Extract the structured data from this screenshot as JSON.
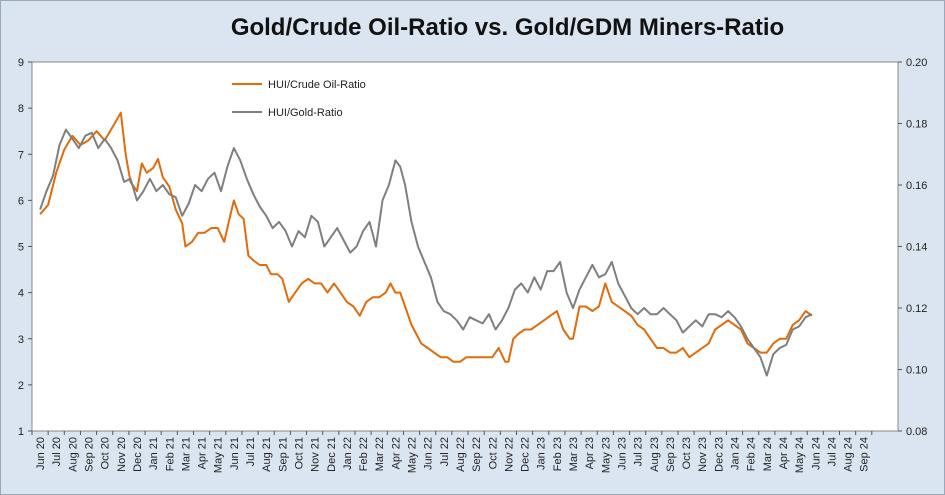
{
  "chart_data": {
    "type": "line",
    "title": "Gold/Crude Oil-Ratio vs. Gold/GDM Miners-Ratio",
    "x_labels": [
      "Jun 20",
      "Jul 20",
      "Aug 20",
      "Sep 20",
      "Oct 20",
      "Nov 20",
      "Dec 20",
      "Jan 21",
      "Feb 21",
      "Mar 21",
      "Apr 21",
      "May 21",
      "Jun 21",
      "Jul 21",
      "Aug 21",
      "Sep 21",
      "Oct 21",
      "Nov 21",
      "Dec 21",
      "Jan 22",
      "Feb 22",
      "Mar 22",
      "Apr 22",
      "May 22",
      "Jun 22",
      "Jul 22",
      "Aug 22",
      "Sep 22",
      "Oct 22",
      "Nov 22",
      "Dec 22",
      "Jan 23",
      "Feb 23",
      "Mar 23",
      "Apr 23",
      "May 23",
      "Jun 23",
      "Jul 23",
      "Aug 23",
      "Sep 23",
      "Oct 23",
      "Nov 23",
      "Dec 23",
      "Jan 24",
      "Feb 24",
      "Mar 24",
      "Apr 24",
      "May 24",
      "Jun 24",
      "Jul 24",
      "Aug 24",
      "Sep 24"
    ],
    "y_left": {
      "min": 1,
      "max": 9,
      "ticks": [
        "1",
        "2",
        "3",
        "4",
        "5",
        "6",
        "7",
        "8",
        "9"
      ]
    },
    "y_right": {
      "min": 0.08,
      "max": 0.2,
      "ticks": [
        "0.08",
        "0.10",
        "0.12",
        "0.14",
        "0.16",
        "0.18",
        "0.20"
      ]
    },
    "series": [
      {
        "name": "HUI/Crude Oil-Ratio",
        "axis": "left",
        "color": "#e26b0a",
        "points": [
          [
            0,
            5.7
          ],
          [
            0.5,
            5.9
          ],
          [
            1,
            6.6
          ],
          [
            1.5,
            7.1
          ],
          [
            2,
            7.4
          ],
          [
            2.5,
            7.2
          ],
          [
            3,
            7.3
          ],
          [
            3.5,
            7.5
          ],
          [
            4,
            7.3
          ],
          [
            4.5,
            7.6
          ],
          [
            5,
            7.9
          ],
          [
            5.3,
            7.0
          ],
          [
            5.6,
            6.4
          ],
          [
            6,
            6.2
          ],
          [
            6.3,
            6.8
          ],
          [
            6.6,
            6.6
          ],
          [
            7,
            6.7
          ],
          [
            7.3,
            6.9
          ],
          [
            7.6,
            6.5
          ],
          [
            8,
            6.3
          ],
          [
            8.4,
            5.8
          ],
          [
            8.8,
            5.5
          ],
          [
            9,
            5.0
          ],
          [
            9.4,
            5.1
          ],
          [
            9.8,
            5.3
          ],
          [
            10.2,
            5.3
          ],
          [
            10.6,
            5.4
          ],
          [
            11,
            5.4
          ],
          [
            11.4,
            5.1
          ],
          [
            11.8,
            5.7
          ],
          [
            12,
            6.0
          ],
          [
            12.3,
            5.7
          ],
          [
            12.6,
            5.6
          ],
          [
            12.9,
            4.8
          ],
          [
            13.2,
            4.7
          ],
          [
            13.6,
            4.6
          ],
          [
            14,
            4.6
          ],
          [
            14.3,
            4.4
          ],
          [
            14.7,
            4.4
          ],
          [
            15,
            4.3
          ],
          [
            15.4,
            3.8
          ],
          [
            15.8,
            4.0
          ],
          [
            16.2,
            4.2
          ],
          [
            16.6,
            4.3
          ],
          [
            17,
            4.2
          ],
          [
            17.4,
            4.2
          ],
          [
            17.8,
            4.0
          ],
          [
            18.2,
            4.2
          ],
          [
            18.6,
            4.0
          ],
          [
            19,
            3.8
          ],
          [
            19.4,
            3.7
          ],
          [
            19.8,
            3.5
          ],
          [
            20.2,
            3.8
          ],
          [
            20.6,
            3.9
          ],
          [
            21,
            3.9
          ],
          [
            21.4,
            4.0
          ],
          [
            21.7,
            4.2
          ],
          [
            22,
            4.0
          ],
          [
            22.3,
            4.0
          ],
          [
            22.6,
            3.7
          ],
          [
            23,
            3.3
          ],
          [
            23.3,
            3.1
          ],
          [
            23.6,
            2.9
          ],
          [
            24,
            2.8
          ],
          [
            24.4,
            2.7
          ],
          [
            24.8,
            2.6
          ],
          [
            25.2,
            2.6
          ],
          [
            25.6,
            2.5
          ],
          [
            26,
            2.5
          ],
          [
            26.4,
            2.6
          ],
          [
            26.8,
            2.6
          ],
          [
            27.2,
            2.6
          ],
          [
            27.6,
            2.6
          ],
          [
            28,
            2.6
          ],
          [
            28.4,
            2.8
          ],
          [
            28.8,
            2.5
          ],
          [
            29,
            2.5
          ],
          [
            29.3,
            3.0
          ],
          [
            29.6,
            3.1
          ],
          [
            30,
            3.2
          ],
          [
            30.4,
            3.2
          ],
          [
            30.8,
            3.3
          ],
          [
            31.2,
            3.4
          ],
          [
            31.6,
            3.5
          ],
          [
            32,
            3.6
          ],
          [
            32.4,
            3.2
          ],
          [
            32.8,
            3.0
          ],
          [
            33,
            3.0
          ],
          [
            33.4,
            3.7
          ],
          [
            33.8,
            3.7
          ],
          [
            34.2,
            3.6
          ],
          [
            34.6,
            3.7
          ],
          [
            35,
            4.2
          ],
          [
            35.4,
            3.8
          ],
          [
            35.8,
            3.7
          ],
          [
            36.2,
            3.6
          ],
          [
            36.6,
            3.5
          ],
          [
            37,
            3.3
          ],
          [
            37.4,
            3.2
          ],
          [
            37.8,
            3.0
          ],
          [
            38.2,
            2.8
          ],
          [
            38.6,
            2.8
          ],
          [
            39,
            2.7
          ],
          [
            39.4,
            2.7
          ],
          [
            39.8,
            2.8
          ],
          [
            40.2,
            2.6
          ],
          [
            40.6,
            2.7
          ],
          [
            41,
            2.8
          ],
          [
            41.4,
            2.9
          ],
          [
            41.8,
            3.2
          ],
          [
            42.2,
            3.3
          ],
          [
            42.6,
            3.4
          ],
          [
            43,
            3.3
          ],
          [
            43.4,
            3.2
          ],
          [
            43.8,
            2.9
          ],
          [
            44.2,
            2.8
          ],
          [
            44.6,
            2.7
          ],
          [
            45,
            2.7
          ],
          [
            45.4,
            2.9
          ],
          [
            45.8,
            3.0
          ],
          [
            46.2,
            3.0
          ],
          [
            46.6,
            3.3
          ],
          [
            47,
            3.4
          ],
          [
            47.4,
            3.6
          ],
          [
            47.8,
            3.5
          ]
        ]
      },
      {
        "name": "HUI/Gold-Ratio",
        "axis": "right",
        "color": "#7f7f7f",
        "points": [
          [
            0,
            0.152
          ],
          [
            0.4,
            0.158
          ],
          [
            0.8,
            0.163
          ],
          [
            1.2,
            0.173
          ],
          [
            1.6,
            0.178
          ],
          [
            2,
            0.175
          ],
          [
            2.4,
            0.172
          ],
          [
            2.8,
            0.176
          ],
          [
            3.2,
            0.177
          ],
          [
            3.6,
            0.172
          ],
          [
            4,
            0.175
          ],
          [
            4.4,
            0.172
          ],
          [
            4.8,
            0.168
          ],
          [
            5.2,
            0.161
          ],
          [
            5.6,
            0.162
          ],
          [
            6,
            0.155
          ],
          [
            6.4,
            0.158
          ],
          [
            6.8,
            0.162
          ],
          [
            7.2,
            0.158
          ],
          [
            7.6,
            0.16
          ],
          [
            8,
            0.157
          ],
          [
            8.4,
            0.156
          ],
          [
            8.8,
            0.15
          ],
          [
            9.2,
            0.154
          ],
          [
            9.6,
            0.16
          ],
          [
            10,
            0.158
          ],
          [
            10.4,
            0.162
          ],
          [
            10.8,
            0.164
          ],
          [
            11.2,
            0.158
          ],
          [
            11.6,
            0.166
          ],
          [
            12,
            0.172
          ],
          [
            12.4,
            0.168
          ],
          [
            12.8,
            0.162
          ],
          [
            13.2,
            0.157
          ],
          [
            13.6,
            0.153
          ],
          [
            14,
            0.15
          ],
          [
            14.4,
            0.146
          ],
          [
            14.8,
            0.148
          ],
          [
            15.2,
            0.145
          ],
          [
            15.6,
            0.14
          ],
          [
            16,
            0.145
          ],
          [
            16.4,
            0.143
          ],
          [
            16.8,
            0.15
          ],
          [
            17.2,
            0.148
          ],
          [
            17.6,
            0.14
          ],
          [
            18,
            0.143
          ],
          [
            18.4,
            0.146
          ],
          [
            18.8,
            0.142
          ],
          [
            19.2,
            0.138
          ],
          [
            19.6,
            0.14
          ],
          [
            20,
            0.145
          ],
          [
            20.4,
            0.148
          ],
          [
            20.8,
            0.14
          ],
          [
            21.2,
            0.155
          ],
          [
            21.6,
            0.16
          ],
          [
            22,
            0.168
          ],
          [
            22.3,
            0.166
          ],
          [
            22.6,
            0.16
          ],
          [
            23,
            0.148
          ],
          [
            23.4,
            0.14
          ],
          [
            23.8,
            0.135
          ],
          [
            24.2,
            0.13
          ],
          [
            24.6,
            0.122
          ],
          [
            25,
            0.119
          ],
          [
            25.4,
            0.118
          ],
          [
            25.8,
            0.116
          ],
          [
            26.2,
            0.113
          ],
          [
            26.6,
            0.117
          ],
          [
            27,
            0.116
          ],
          [
            27.4,
            0.115
          ],
          [
            27.8,
            0.118
          ],
          [
            28.2,
            0.113
          ],
          [
            28.6,
            0.116
          ],
          [
            29,
            0.12
          ],
          [
            29.4,
            0.126
          ],
          [
            29.8,
            0.128
          ],
          [
            30.2,
            0.125
          ],
          [
            30.6,
            0.13
          ],
          [
            31,
            0.126
          ],
          [
            31.4,
            0.132
          ],
          [
            31.8,
            0.132
          ],
          [
            32.2,
            0.135
          ],
          [
            32.6,
            0.125
          ],
          [
            33,
            0.12
          ],
          [
            33.4,
            0.126
          ],
          [
            33.8,
            0.13
          ],
          [
            34.2,
            0.134
          ],
          [
            34.6,
            0.13
          ],
          [
            35,
            0.131
          ],
          [
            35.4,
            0.135
          ],
          [
            35.8,
            0.128
          ],
          [
            36.2,
            0.124
          ],
          [
            36.6,
            0.12
          ],
          [
            37,
            0.118
          ],
          [
            37.4,
            0.12
          ],
          [
            37.8,
            0.118
          ],
          [
            38.2,
            0.118
          ],
          [
            38.6,
            0.12
          ],
          [
            39,
            0.118
          ],
          [
            39.4,
            0.116
          ],
          [
            39.8,
            0.112
          ],
          [
            40.2,
            0.114
          ],
          [
            40.6,
            0.116
          ],
          [
            41,
            0.114
          ],
          [
            41.4,
            0.118
          ],
          [
            41.8,
            0.118
          ],
          [
            42.2,
            0.117
          ],
          [
            42.6,
            0.119
          ],
          [
            43,
            0.117
          ],
          [
            43.4,
            0.114
          ],
          [
            43.8,
            0.11
          ],
          [
            44.2,
            0.107
          ],
          [
            44.6,
            0.104
          ],
          [
            45,
            0.098
          ],
          [
            45.4,
            0.105
          ],
          [
            45.8,
            0.107
          ],
          [
            46.2,
            0.108
          ],
          [
            46.6,
            0.113
          ],
          [
            47,
            0.114
          ],
          [
            47.4,
            0.117
          ],
          [
            47.8,
            0.118
          ]
        ]
      }
    ],
    "legend": "top-left"
  }
}
